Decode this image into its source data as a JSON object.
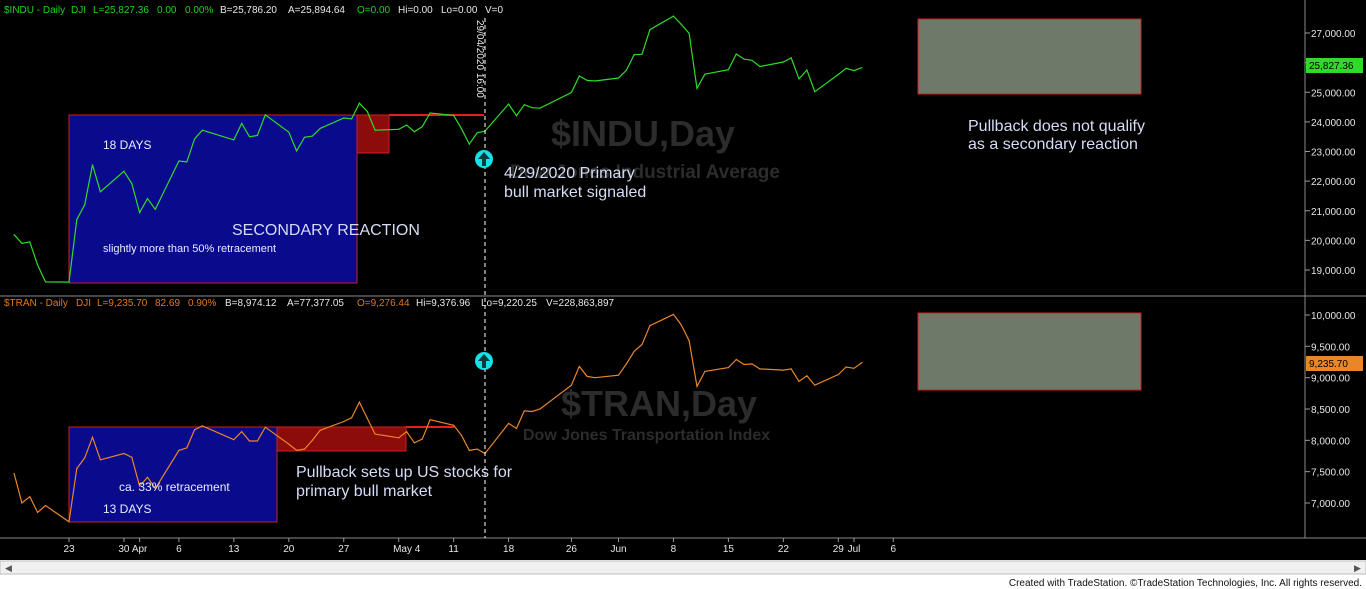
{
  "colors": {
    "indu_line": "#31d92b",
    "tran_line": "#e8862a",
    "secondary_box": "#0a0a8c",
    "pullback_box": "#8c0c0c",
    "grey_box": "#6d7a6a",
    "marker": "#16e0e8"
  },
  "header": {
    "indu": {
      "symbol": "$INDU - Daily",
      "exchange": "DJI",
      "last": "L=25,827.36",
      "change": "0.00",
      "pct": "0.00%",
      "bid": "B=25,786.20",
      "ask": "A=25,894.64",
      "open": "O=0.00",
      "high": "Hi=0.00",
      "low": "Lo=0.00",
      "volume": "V=0"
    },
    "tran": {
      "symbol": "$TRAN - Daily",
      "exchange": "DJI",
      "last": "L=9,235.70",
      "change": "82.69",
      "pct": "0.90%",
      "bid": "B=8,974.12",
      "ask": "A=77,377.05",
      "open": "O=9,276.44",
      "high": "Hi=9,376.96",
      "low": "Lo=9,220.25",
      "volume": "V=228,863,897"
    }
  },
  "watermarks": {
    "indu_symbol": "$INDU,Day",
    "indu_name": "Dow Jones Industrial Average",
    "tran_symbol": "$TRAN,Day",
    "tran_name": "Dow Jones Transportation Index"
  },
  "cursor_label": "29/04/2020 16:00",
  "last_price_tags": {
    "indu": "25,827.36",
    "tran": "9,235.70"
  },
  "annotations": {
    "days_18": "18 DAYS",
    "secondary_reaction": "SECONDARY REACTION",
    "retracement_50": "slightly more than 50% retracement",
    "primary_signal_line1": "4/29/2020 Primary",
    "primary_signal_line2": "bull market signaled",
    "pullback_qualify_line1": "Pullback does not qualify",
    "pullback_qualify_line2": "as a secondary reaction",
    "pullback_sets_line1": "Pullback sets up US stocks for",
    "pullback_sets_line2": "primary bull market",
    "retracement_33": "ca. 33% retracement",
    "days_13": "13 DAYS"
  },
  "footer": "Created with TradeStation. ©TradeStation Technologies, Inc. All rights reserved.",
  "chart_data": [
    {
      "type": "line",
      "title": "$INDU - Daily",
      "series": [
        {
          "name": "$INDU",
          "x": [
            "2020-03-16",
            "2020-03-17",
            "2020-03-18",
            "2020-03-19",
            "2020-03-20",
            "2020-03-23",
            "2020-03-24",
            "2020-03-25",
            "2020-03-26",
            "2020-03-27",
            "2020-03-30",
            "2020-03-31",
            "2020-04-01",
            "2020-04-02",
            "2020-04-03",
            "2020-04-06",
            "2020-04-07",
            "2020-04-08",
            "2020-04-09",
            "2020-04-13",
            "2020-04-14",
            "2020-04-15",
            "2020-04-16",
            "2020-04-17",
            "2020-04-20",
            "2020-04-21",
            "2020-04-22",
            "2020-04-23",
            "2020-04-24",
            "2020-04-27",
            "2020-04-28",
            "2020-04-29",
            "2020-04-30",
            "2020-05-01",
            "2020-05-04",
            "2020-05-05",
            "2020-05-06",
            "2020-05-07",
            "2020-05-08",
            "2020-05-11",
            "2020-05-12",
            "2020-05-13",
            "2020-05-14",
            "2020-05-15",
            "2020-05-18",
            "2020-05-19",
            "2020-05-20",
            "2020-05-21",
            "2020-05-22",
            "2020-05-26",
            "2020-05-27",
            "2020-05-28",
            "2020-05-29",
            "2020-06-01",
            "2020-06-02",
            "2020-06-03",
            "2020-06-04",
            "2020-06-05",
            "2020-06-08",
            "2020-06-09",
            "2020-06-10",
            "2020-06-11",
            "2020-06-12",
            "2020-06-15",
            "2020-06-16",
            "2020-06-17",
            "2020-06-18",
            "2020-06-19",
            "2020-06-22",
            "2020-06-23",
            "2020-06-24",
            "2020-06-25",
            "2020-06-26",
            "2020-06-29",
            "2020-06-30",
            "2020-07-01",
            "2020-07-02"
          ],
          "y": [
            20190,
            19900,
            19950,
            19170,
            18600,
            18590,
            20700,
            21200,
            22550,
            21640,
            22330,
            21920,
            20940,
            21410,
            21050,
            22680,
            22650,
            23430,
            23720,
            23390,
            23950,
            23500,
            23540,
            24240,
            23650,
            23020,
            23480,
            23520,
            23780,
            24130,
            24100,
            24630,
            24350,
            23720,
            23750,
            23890,
            23670,
            23840,
            24300,
            24220,
            23770,
            23250,
            23630,
            23690,
            24600,
            24210,
            24580,
            24480,
            24460,
            24990,
            25550,
            25400,
            25380,
            25480,
            25740,
            26270,
            26280,
            27110,
            27570,
            27290,
            26990,
            25130,
            25610,
            25760,
            26290,
            26120,
            26080,
            25870,
            26020,
            26160,
            25450,
            25750,
            25020,
            25600,
            25810,
            25730,
            25830
          ]
        }
      ],
      "ylim": [
        18500,
        28000
      ],
      "yticks": [
        "19,000.00",
        "20,000.00",
        "21,000.00",
        "22,000.00",
        "23,000.00",
        "24,000.00",
        "25,000.00",
        "26,000.00",
        "27,000.00"
      ],
      "ytick_values": [
        19000,
        20000,
        21000,
        22000,
        23000,
        24000,
        25000,
        26000,
        27000
      ],
      "grid": false
    },
    {
      "type": "line",
      "title": "$TRAN - Daily",
      "series": [
        {
          "name": "$TRAN",
          "x": [
            "2020-03-16",
            "2020-03-17",
            "2020-03-18",
            "2020-03-19",
            "2020-03-20",
            "2020-03-23",
            "2020-03-24",
            "2020-03-25",
            "2020-03-26",
            "2020-03-27",
            "2020-03-30",
            "2020-03-31",
            "2020-04-01",
            "2020-04-02",
            "2020-04-03",
            "2020-04-06",
            "2020-04-07",
            "2020-04-08",
            "2020-04-09",
            "2020-04-13",
            "2020-04-14",
            "2020-04-15",
            "2020-04-16",
            "2020-04-17",
            "2020-04-20",
            "2020-04-21",
            "2020-04-22",
            "2020-04-23",
            "2020-04-24",
            "2020-04-27",
            "2020-04-28",
            "2020-04-29",
            "2020-04-30",
            "2020-05-01",
            "2020-05-04",
            "2020-05-05",
            "2020-05-06",
            "2020-05-07",
            "2020-05-08",
            "2020-05-11",
            "2020-05-12",
            "2020-05-13",
            "2020-05-14",
            "2020-05-15",
            "2020-05-18",
            "2020-05-19",
            "2020-05-20",
            "2020-05-21",
            "2020-05-22",
            "2020-05-26",
            "2020-05-27",
            "2020-05-28",
            "2020-05-29",
            "2020-06-01",
            "2020-06-02",
            "2020-06-03",
            "2020-06-04",
            "2020-06-05",
            "2020-06-08",
            "2020-06-09",
            "2020-06-10",
            "2020-06-11",
            "2020-06-12",
            "2020-06-15",
            "2020-06-16",
            "2020-06-17",
            "2020-06-18",
            "2020-06-19",
            "2020-06-22",
            "2020-06-23",
            "2020-06-24",
            "2020-06-25",
            "2020-06-26",
            "2020-06-29",
            "2020-06-30",
            "2020-07-01",
            "2020-07-02"
          ],
          "y": [
            7470,
            7000,
            7100,
            6850,
            6960,
            6700,
            7550,
            7720,
            8050,
            7690,
            7790,
            7730,
            7270,
            7410,
            7230,
            7840,
            7880,
            8170,
            8230,
            8010,
            8140,
            7990,
            7990,
            8210,
            7940,
            7840,
            7860,
            8000,
            8160,
            8300,
            8360,
            8610,
            8350,
            8100,
            8040,
            8140,
            7960,
            8020,
            8330,
            8240,
            8080,
            7840,
            7860,
            7790,
            8270,
            8190,
            8470,
            8460,
            8500,
            8880,
            9180,
            9020,
            9000,
            9040,
            9220,
            9420,
            9530,
            9830,
            10010,
            9840,
            9590,
            8860,
            9100,
            9160,
            9290,
            9210,
            9220,
            9140,
            9120,
            9140,
            8940,
            9030,
            8880,
            9050,
            9170,
            9150,
            9240
          ]
        }
      ],
      "ylim": [
        6550,
        10150
      ],
      "yticks": [
        "7,000.00",
        "7,500.00",
        "8,000.00",
        "8,500.00",
        "9,000.00",
        "9,500.00",
        "10,000.00"
      ],
      "ytick_values": [
        7000,
        7500,
        8000,
        8500,
        9000,
        9500,
        10000
      ],
      "grid": false
    }
  ],
  "x_axis": {
    "labels": [
      "23",
      "30",
      "Apr",
      "6",
      "13",
      "20",
      "27",
      "May 4",
      "11",
      "18",
      "26",
      "Jun",
      "8",
      "15",
      "22",
      "29",
      "Jul",
      "6"
    ]
  }
}
